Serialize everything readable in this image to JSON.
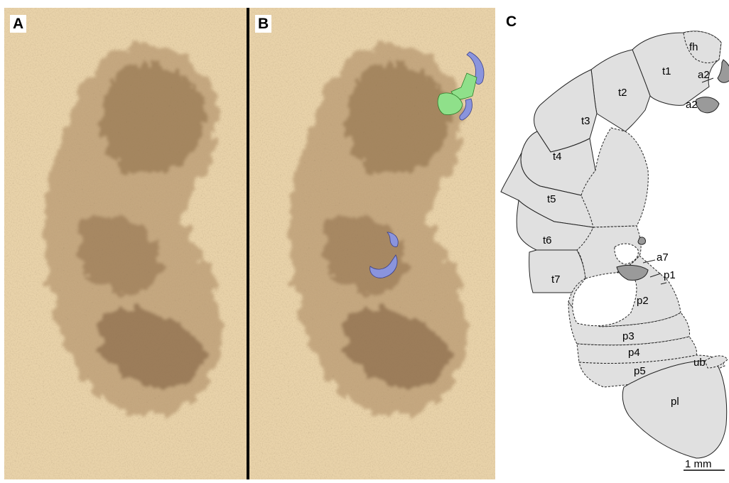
{
  "panels": {
    "a": {
      "letter": "A"
    },
    "b": {
      "letter": "B"
    },
    "c": {
      "letter": "C"
    }
  },
  "colors": {
    "matrix": "#e9d3aa",
    "fossil": "#8a6a45",
    "leg_green": "#8fe08a",
    "claw_blue": "#8a94dd",
    "drawing_fill": "#e0e0e0",
    "appendage_fill": "#9a9a9a"
  },
  "drawing": {
    "labels": {
      "fh": "fh",
      "t1": "t1",
      "t2": "t2",
      "t3": "t3",
      "t4": "t4",
      "t5": "t5",
      "t6": "t6",
      "t7": "t7",
      "a2_top": "a2",
      "a2_bottom": "a2",
      "a7": "a7",
      "p1": "p1",
      "p2": "p2",
      "p3": "p3",
      "p4": "p4",
      "p5": "p5",
      "ub": "ub",
      "pl": "pl"
    },
    "scale_bar": "1 mm"
  }
}
